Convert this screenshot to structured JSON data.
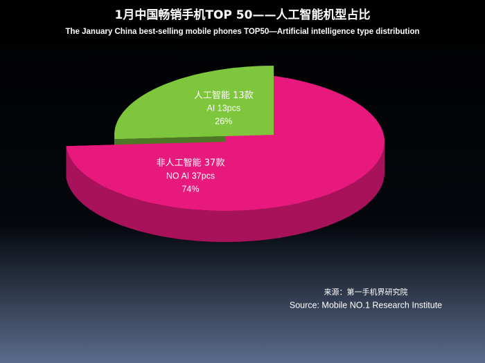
{
  "chart_data": {
    "type": "pie",
    "title": "1月中国畅销手机TOP 50——人工智能机型占比",
    "subtitle": "The January China best-selling mobile phones TOP50—Artificial intelligence type distribution",
    "categories": [
      "非人工智能 37款",
      "人工智能 13款"
    ],
    "count_labels": [
      "NO AI 37pcs",
      "AI 13pcs"
    ],
    "values": [
      74,
      26
    ],
    "value_labels": [
      "74%",
      "26%"
    ],
    "colors": [
      "#e8197d",
      "#7ec63c"
    ],
    "exploded": [
      false,
      true
    ],
    "source": [
      "来源：第一手机界研究院",
      "Source: Mobile NO.1 Research Institute"
    ]
  }
}
